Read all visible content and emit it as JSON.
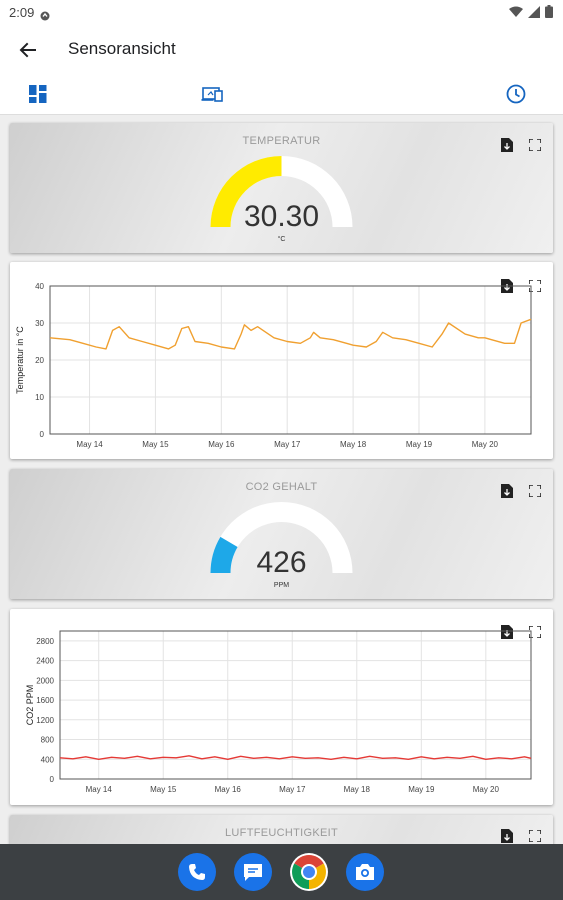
{
  "status_bar": {
    "time": "2:09"
  },
  "app_bar": {
    "title": "Sensoransicht"
  },
  "tabs": [
    {
      "icon": "dashboard-icon",
      "active": false
    },
    {
      "icon": "devices-icon",
      "active": false
    },
    {
      "icon": "history-icon",
      "active": true
    }
  ],
  "colors": {
    "accent": "#1565c0",
    "temperature_gauge": "#ffeb00",
    "co2_gauge": "#1ea8e8",
    "temperature_line": "#f0a030",
    "co2_line": "#e53935",
    "gauge_track": "#ffffff",
    "nav_bar": "#3c4043"
  },
  "cards": {
    "temperature_gauge": {
      "title": "TEMPERATUR",
      "value": "30.30",
      "unit": "°C",
      "fraction": 0.5,
      "icons": [
        "export-file-icon",
        "fullscreen-icon"
      ]
    },
    "co2_gauge": {
      "title": "CO2 GEHALT",
      "value": "426",
      "unit": "PPM",
      "fraction": 0.17,
      "icons": [
        "export-file-icon",
        "fullscreen-icon"
      ]
    },
    "humidity_gauge": {
      "title": "LUFTFEUCHTIGKEIT",
      "icons": [
        "export-file-icon",
        "fullscreen-icon"
      ]
    }
  },
  "chart_data": [
    {
      "type": "line",
      "ylabel": "Temperatur in °C",
      "ylim": [
        0,
        40
      ],
      "yticks": [
        0,
        10,
        20,
        30,
        40
      ],
      "xlim": [
        13.4,
        20.7
      ],
      "xticks": [
        14,
        15,
        16,
        17,
        18,
        19,
        20
      ],
      "xtick_labels": [
        "May 14",
        "May 15",
        "May 16",
        "May 17",
        "May 18",
        "May 19",
        "May 20"
      ],
      "grid": true,
      "series": [
        {
          "x": [
            13.4,
            13.7,
            13.9,
            14.1,
            14.25,
            14.35,
            14.45,
            14.6,
            14.8,
            15.0,
            15.2,
            15.3,
            15.4,
            15.5,
            15.6,
            15.8,
            16.0,
            16.2,
            16.3,
            16.35,
            16.45,
            16.55,
            16.8,
            17.0,
            17.2,
            17.35,
            17.4,
            17.5,
            17.7,
            17.9,
            18.0,
            18.2,
            18.35,
            18.45,
            18.6,
            18.8,
            19.0,
            19.2,
            19.35,
            19.45,
            19.7,
            19.9,
            20.0,
            20.1,
            20.3,
            20.45,
            20.55,
            20.7
          ],
          "y": [
            26,
            25.5,
            24.5,
            23.5,
            23,
            28,
            29,
            26,
            25,
            24,
            23,
            24,
            28.5,
            29,
            25,
            24.5,
            23.5,
            23,
            27,
            29.5,
            28,
            29,
            26,
            25,
            24.5,
            26,
            27.5,
            26,
            25.5,
            24.5,
            24,
            23.5,
            25,
            27.5,
            26,
            25.5,
            24.5,
            23.5,
            27,
            30,
            27,
            26,
            26,
            25.5,
            24.5,
            24.5,
            30,
            31
          ]
        }
      ]
    },
    {
      "type": "line",
      "ylabel": "CO2 PPM",
      "ylim": [
        0,
        3000
      ],
      "yticks": [
        0,
        400,
        800,
        1200,
        1600,
        2000,
        2400,
        2800
      ],
      "xlim": [
        13.4,
        20.7
      ],
      "xticks": [
        14,
        15,
        16,
        17,
        18,
        19,
        20
      ],
      "xtick_labels": [
        "May 14",
        "May 15",
        "May 16",
        "May 17",
        "May 18",
        "May 19",
        "May 20"
      ],
      "grid": true,
      "series": [
        {
          "x": [
            13.4,
            13.6,
            13.8,
            14.0,
            14.2,
            14.4,
            14.6,
            14.8,
            15.0,
            15.2,
            15.4,
            15.6,
            15.8,
            16.0,
            16.2,
            16.4,
            16.6,
            16.8,
            17.0,
            17.2,
            17.4,
            17.6,
            17.8,
            18.0,
            18.2,
            18.4,
            18.6,
            18.8,
            19.0,
            19.2,
            19.4,
            19.6,
            19.8,
            20.0,
            20.2,
            20.4,
            20.6,
            20.7
          ],
          "y": [
            430,
            410,
            450,
            400,
            440,
            420,
            460,
            410,
            440,
            430,
            470,
            410,
            450,
            400,
            460,
            420,
            440,
            410,
            450,
            420,
            430,
            400,
            440,
            410,
            460,
            420,
            430,
            400,
            450,
            410,
            440,
            420,
            460,
            400,
            430,
            410,
            450,
            420
          ]
        }
      ]
    }
  ]
}
